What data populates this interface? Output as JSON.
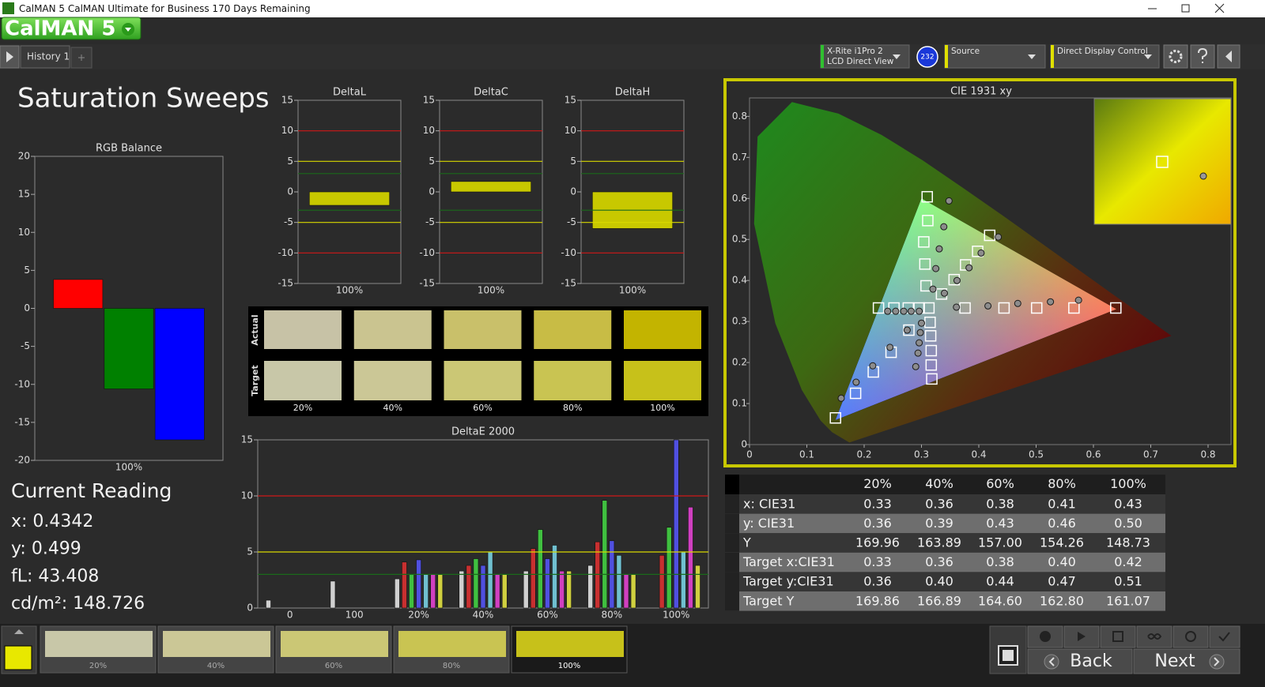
{
  "window_title": "CalMAN 5 CalMAN Ultimate for Business 170 Days Remaining",
  "logo": "CalMAN 5",
  "tab": "History 1",
  "meter": {
    "line1": "X-Rite i1Pro 2",
    "line2": "LCD Direct View",
    "badge": "232"
  },
  "source": "Source",
  "display_control": "Direct Display Control",
  "page_title": "Saturation Sweeps",
  "rgb_balance": {
    "type": "bar",
    "title": "RGB Balance",
    "categories": [
      "100%"
    ],
    "series": [
      {
        "color": "#ff0000",
        "values": [
          3.8
        ]
      },
      {
        "color": "#008000",
        "values": [
          -10.6
        ]
      },
      {
        "color": "#0000ff",
        "values": [
          -17.3
        ]
      }
    ],
    "ylim": [
      -20,
      20
    ],
    "yticks": [
      -20,
      -15,
      -10,
      -5,
      0,
      5,
      10,
      15,
      20
    ]
  },
  "delta_charts": [
    {
      "type": "bar",
      "title": "DeltaL",
      "categories": [
        "100%"
      ],
      "values": [
        -2.2
      ],
      "color": "#c8c800",
      "ylim": [
        -15,
        15
      ],
      "yticks": [
        -15,
        -10,
        -5,
        0,
        5,
        10,
        15
      ],
      "reference_lines": [
        {
          "value": 10,
          "color": "#d01818"
        },
        {
          "value": -10,
          "color": "#d01818"
        },
        {
          "value": 5,
          "color": "#d8d800"
        },
        {
          "value": -5,
          "color": "#d8d800"
        },
        {
          "value": 3,
          "color": "#1a6a1a"
        },
        {
          "value": -3,
          "color": "#1a6a1a"
        }
      ]
    },
    {
      "type": "bar",
      "title": "DeltaC",
      "categories": [
        "100%"
      ],
      "values": [
        1.7
      ],
      "color": "#c8c800",
      "ylim": [
        -15,
        15
      ],
      "yticks": [
        -15,
        -10,
        -5,
        0,
        5,
        10,
        15
      ],
      "reference_lines": [
        {
          "value": 10,
          "color": "#d01818"
        },
        {
          "value": -10,
          "color": "#d01818"
        },
        {
          "value": 5,
          "color": "#d8d800"
        },
        {
          "value": -5,
          "color": "#d8d800"
        },
        {
          "value": 3,
          "color": "#1a6a1a"
        },
        {
          "value": -3,
          "color": "#1a6a1a"
        }
      ]
    },
    {
      "type": "bar",
      "title": "DeltaH",
      "categories": [
        "100%"
      ],
      "values": [
        -6.0
      ],
      "color": "#c8c800",
      "ylim": [
        -15,
        15
      ],
      "yticks": [
        -15,
        -10,
        -5,
        0,
        5,
        10,
        15
      ],
      "reference_lines": [
        {
          "value": 10,
          "color": "#d01818"
        },
        {
          "value": -10,
          "color": "#d01818"
        },
        {
          "value": 5,
          "color": "#d8d800"
        },
        {
          "value": -5,
          "color": "#d8d800"
        },
        {
          "value": 3,
          "color": "#1a6a1a"
        },
        {
          "value": -3,
          "color": "#1a6a1a"
        }
      ]
    }
  ],
  "swatches": {
    "rows": [
      "Actual",
      "Target"
    ],
    "categories": [
      "20%",
      "40%",
      "60%",
      "80%",
      "100%"
    ],
    "actual": [
      "#c7c2a6",
      "#cac490",
      "#c9c06a",
      "#c8bc45",
      "#c3b400"
    ],
    "target": [
      "#c8c7a8",
      "#cbc796",
      "#cbc775",
      "#c9c452",
      "#c7c11a"
    ]
  },
  "delta_e": {
    "type": "bar",
    "title": "DeltaE 2000",
    "categories": [
      "0",
      "100",
      "20%",
      "40%",
      "60%",
      "80%",
      "100%"
    ],
    "series": [
      {
        "color": "#d0d0d0",
        "values": [
          0.7,
          2.4,
          2.6,
          3.3,
          3.3,
          3.8,
          null
        ]
      },
      {
        "color": "#c83030",
        "values": [
          null,
          null,
          4.1,
          3.8,
          5.3,
          5.9,
          4.7
        ]
      },
      {
        "color": "#40c040",
        "values": [
          null,
          null,
          3.0,
          4.4,
          7.0,
          9.6,
          7.2
        ]
      },
      {
        "color": "#5050e0",
        "values": [
          null,
          null,
          4.3,
          3.8,
          4.4,
          6.0,
          15.0
        ]
      },
      {
        "color": "#70c0d0",
        "values": [
          null,
          null,
          3.0,
          5.0,
          5.6,
          4.7,
          5.0
        ]
      },
      {
        "color": "#d040c0",
        "values": [
          null,
          null,
          3.0,
          3.0,
          3.3,
          3.0,
          9.0
        ]
      },
      {
        "color": "#d0d040",
        "values": [
          null,
          null,
          3.0,
          3.0,
          3.3,
          3.0,
          3.8
        ]
      }
    ],
    "ylim": [
      0,
      15
    ],
    "yticks": [
      0,
      5,
      10,
      15
    ],
    "reference_lines": [
      {
        "value": 10,
        "color": "#d01818"
      },
      {
        "value": 5,
        "color": "#d8d800"
      },
      {
        "value": 3,
        "color": "#1a6a1a"
      }
    ]
  },
  "cie": {
    "type": "scatter",
    "title": "CIE 1931 xy",
    "xlim": [
      0,
      0.84
    ],
    "ylim": [
      0,
      0.845
    ],
    "xticks": [
      0,
      0.1,
      0.2,
      0.3,
      0.4,
      0.5,
      0.6,
      0.7,
      0.8
    ],
    "yticks": [
      0,
      0.1,
      0.2,
      0.3,
      0.4,
      0.5,
      0.6,
      0.7,
      0.8
    ],
    "gamut": {
      "x": [
        0.64,
        0.3,
        0.15
      ],
      "y": [
        0.33,
        0.6,
        0.06
      ]
    },
    "series": [
      {
        "marker": "square",
        "color": "#ffffff",
        "x": [
          0.313,
          0.376,
          0.444,
          0.501,
          0.566,
          0.639,
          0.31,
          0.311,
          0.304,
          0.306,
          0.308,
          0.15,
          0.185,
          0.216,
          0.247,
          0.278,
          0.225,
          0.252,
          0.277,
          0.296,
          0.318,
          0.317,
          0.317,
          0.316,
          0.315,
          0.419,
          0.398,
          0.377,
          0.357,
          0.335
        ],
        "y": [
          0.333,
          0.333,
          0.333,
          0.333,
          0.333,
          0.333,
          0.604,
          0.546,
          0.494,
          0.44,
          0.387,
          0.065,
          0.125,
          0.177,
          0.225,
          0.279,
          0.333,
          0.333,
          0.333,
          0.333,
          0.16,
          0.194,
          0.229,
          0.265,
          0.298,
          0.51,
          0.471,
          0.438,
          0.402,
          0.367
        ]
      },
      {
        "marker": "circle",
        "color": "#8c8c8c",
        "x": [
          0.361,
          0.416,
          0.468,
          0.525,
          0.574,
          0.348,
          0.339,
          0.331,
          0.325,
          0.32,
          0.16,
          0.186,
          0.215,
          0.245,
          0.275,
          0.241,
          0.255,
          0.269,
          0.282,
          0.296,
          0.29,
          0.294,
          0.296,
          0.298,
          0.3,
          0.434,
          0.404,
          0.383,
          0.362,
          0.34
        ],
        "y": [
          0.335,
          0.338,
          0.344,
          0.348,
          0.352,
          0.594,
          0.531,
          0.477,
          0.429,
          0.379,
          0.113,
          0.152,
          0.192,
          0.237,
          0.279,
          0.325,
          0.325,
          0.325,
          0.325,
          0.325,
          0.19,
          0.223,
          0.248,
          0.273,
          0.296,
          0.506,
          0.467,
          0.431,
          0.4,
          0.369
        ]
      }
    ]
  },
  "table": {
    "header": [
      "20%",
      "40%",
      "60%",
      "80%",
      "100%"
    ],
    "rows": [
      [
        "x: CIE31",
        "0.33",
        "0.36",
        "0.38",
        "0.41",
        "0.43"
      ],
      [
        "y: CIE31",
        "0.36",
        "0.39",
        "0.43",
        "0.46",
        "0.50"
      ],
      [
        "Y",
        "169.96",
        "163.89",
        "157.00",
        "154.26",
        "148.73"
      ],
      [
        "Target x:CIE31",
        "0.33",
        "0.36",
        "0.38",
        "0.40",
        "0.42"
      ],
      [
        "Target y:CIE31",
        "0.36",
        "0.40",
        "0.44",
        "0.47",
        "0.51"
      ],
      [
        "Target Y",
        "169.86",
        "166.89",
        "164.60",
        "162.80",
        "161.07"
      ]
    ]
  },
  "current_reading": {
    "title": "Current Reading",
    "lines": [
      "x: 0.4342",
      "y: 0.499",
      "fL: 43.408",
      "cd/m²: 148.726"
    ]
  },
  "bottom": {
    "current_color": "#e8e800",
    "swatches": [
      {
        "label": "20%",
        "color": "#c8c7a8"
      },
      {
        "label": "40%",
        "color": "#cbc796"
      },
      {
        "label": "60%",
        "color": "#cbc775"
      },
      {
        "label": "80%",
        "color": "#c9c452"
      },
      {
        "label": "100%",
        "color": "#c7c11a"
      }
    ],
    "buttons": [
      "Back",
      "Next"
    ]
  }
}
